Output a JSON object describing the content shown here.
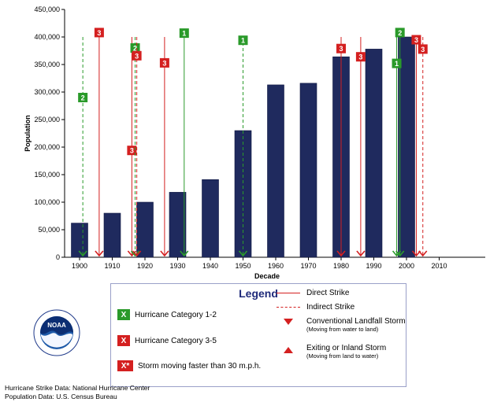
{
  "chart_data": {
    "type": "bar",
    "xlabel": "Decade",
    "ylabel": "Population",
    "ylim": [
      0,
      450000
    ],
    "yticks": [
      "0",
      "50,000",
      "100,000",
      "150,000",
      "200,000",
      "250,000",
      "300,000",
      "350,000",
      "400,000",
      "450,000"
    ],
    "categories": [
      "1900",
      "1910",
      "1920",
      "1930",
      "1940",
      "1950",
      "1960",
      "1970",
      "1980",
      "1990",
      "2000",
      "2010"
    ],
    "values": [
      62000,
      80000,
      100000,
      118000,
      141000,
      230000,
      313000,
      316000,
      364000,
      378000,
      400000,
      null
    ],
    "bar_color": "#1f2a5e",
    "grid": false,
    "storms": [
      {
        "x": 1901,
        "category": "2",
        "strike": "indirect",
        "color": "#2a9a2a",
        "badge_y": 290000
      },
      {
        "x": 1906,
        "category": "3",
        "strike": "direct",
        "color": "#d42020",
        "badge_y": 408000
      },
      {
        "x": 1916,
        "category": "3",
        "strike": "direct",
        "color": "#d42020",
        "badge_y": 194000
      },
      {
        "x": 1917,
        "category": "2",
        "strike": "indirect",
        "color": "#2a9a2a",
        "badge_y": 380000
      },
      {
        "x": 1917.5,
        "category": "3",
        "strike": "indirect",
        "color": "#d42020",
        "badge_y": 366000
      },
      {
        "x": 1926,
        "category": "3",
        "strike": "direct",
        "color": "#d42020",
        "badge_y": 353000
      },
      {
        "x": 1932,
        "category": "1",
        "strike": "direct",
        "color": "#2a9a2a",
        "badge_y": 407000
      },
      {
        "x": 1950,
        "category": "1",
        "strike": "indirect",
        "color": "#2a9a2a",
        "badge_y": 394000
      },
      {
        "x": 1980,
        "category": "3",
        "strike": "direct",
        "color": "#d42020",
        "badge_y": 379000
      },
      {
        "x": 1986,
        "category": "3",
        "strike": "direct",
        "color": "#d42020",
        "badge_y": 364000
      },
      {
        "x": 1997,
        "category": "1",
        "strike": "direct",
        "color": "#2a9a2a",
        "badge_y": 352000
      },
      {
        "x": 1998,
        "category": "2",
        "strike": "direct",
        "color": "#2a9a2a",
        "badge_y": 408000
      },
      {
        "x": 2003,
        "category": "3",
        "strike": "direct",
        "color": "#d42020",
        "badge_y": 395000
      },
      {
        "x": 2005,
        "category": "3",
        "strike": "indirect",
        "color": "#d42020",
        "badge_y": 378000
      }
    ]
  },
  "legend": {
    "title": "Legend",
    "cat12_symbol": "X",
    "cat12_label": "Hurricane Category 1-2",
    "cat35_symbol": "X",
    "cat35_label": "Hurricane Category 3-5",
    "fast_symbol": "X*",
    "fast_label": "Storm moving faster than 30 m.p.h.",
    "direct_label": "Direct Strike",
    "indirect_label": "Indirect Strike",
    "landfall_label": "Conventional Landfall Storm",
    "landfall_sub": "(Moving from water to land)",
    "exiting_label": "Exiting or Inland Storm",
    "exiting_sub": "(Moving from land to water)",
    "green": "#2a9a2a",
    "red": "#d42020"
  },
  "logo": {
    "text": "NOAA"
  },
  "sources": {
    "line1": "Hurricane Strike Data:  National Hurricane Center",
    "line2": "Population Data:  U.S. Census Bureau"
  }
}
